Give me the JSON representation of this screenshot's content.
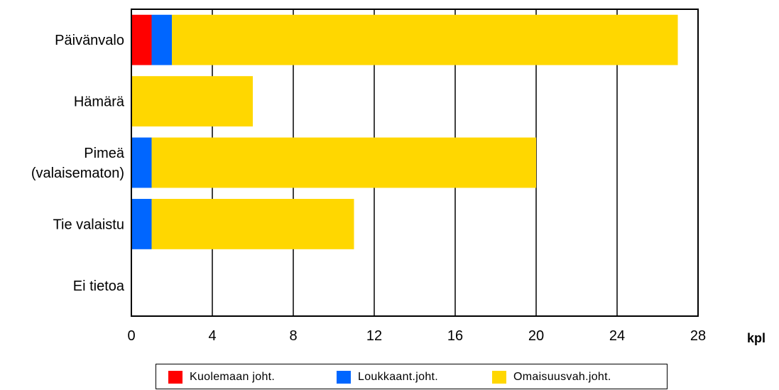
{
  "chart_data": {
    "type": "bar",
    "orientation": "horizontal",
    "stacked": true,
    "categories": [
      "Päivänvalo",
      "Hämärä",
      "Pimeä\n(valaisematon)",
      "Tie valaistu",
      "Ei tietoa"
    ],
    "series": [
      {
        "name": "Kuolemaan joht.",
        "color": "#ff0000",
        "values": [
          1,
          0,
          0,
          0,
          0
        ]
      },
      {
        "name": "Loukkaant.joht.",
        "color": "#0066ff",
        "values": [
          1,
          0,
          1,
          1,
          0
        ]
      },
      {
        "name": "Omaisuusvah.joht.",
        "color": "#ffd700",
        "values": [
          25,
          6,
          19,
          10,
          0
        ]
      }
    ],
    "xlim": [
      0,
      28
    ],
    "xticks": [
      0,
      4,
      8,
      12,
      16,
      20,
      24,
      28
    ],
    "xunit": "kpl",
    "grid": "vertical",
    "legend": "bottom"
  }
}
